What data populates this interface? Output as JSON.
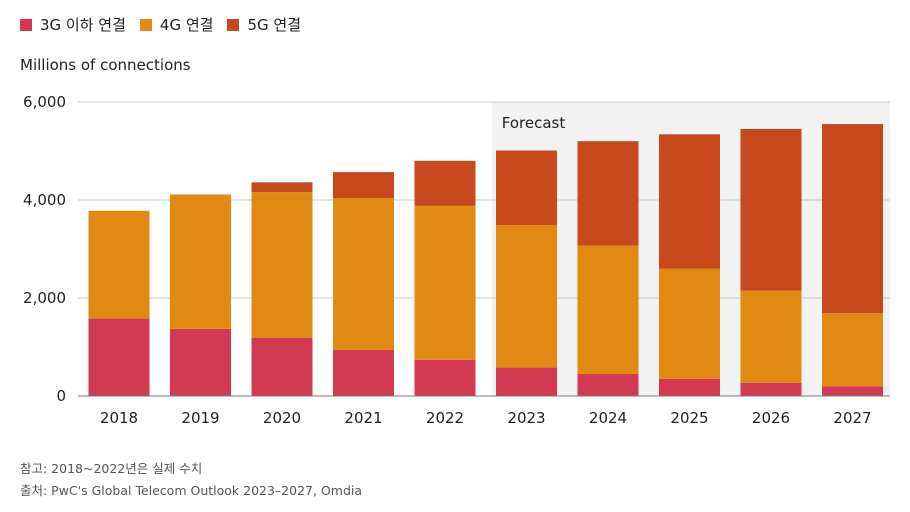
{
  "chart_data": {
    "type": "bar",
    "stacked": true,
    "title": "",
    "ylabel": "Millions of connections",
    "xlabel": "",
    "ylim": [
      0,
      6000
    ],
    "yticks": [
      0,
      2000,
      4000,
      6000
    ],
    "ytick_labels": [
      "0",
      "2,000",
      "4,000",
      "6,000"
    ],
    "categories": [
      "2018",
      "2019",
      "2020",
      "2021",
      "2022",
      "2023",
      "2024",
      "2025",
      "2026",
      "2027"
    ],
    "series": [
      {
        "name": "3G 이하 연결",
        "color": "#d13a52",
        "values": [
          1580,
          1370,
          1190,
          940,
          740,
          580,
          450,
          350,
          270,
          200
        ]
      },
      {
        "name": "4G 연결",
        "color": "#e08a14",
        "values": [
          2200,
          2730,
          2970,
          3100,
          3140,
          2910,
          2620,
          2250,
          1880,
          1490
        ]
      },
      {
        "name": "5G 연결",
        "color": "#c8481e",
        "values": [
          0,
          10,
          200,
          530,
          920,
          1520,
          2130,
          2740,
          3300,
          3860
        ]
      }
    ],
    "forecast": {
      "label": "Forecast",
      "start_category": "2023"
    },
    "legend_position": "top-left",
    "grid": true
  },
  "notes": {
    "line1": "참고: 2018~2022년은 실제 수치",
    "line2": "출처: PwC's Global Telecom Outlook 2023–2027, Omdia"
  },
  "colors": {
    "forecast_bg": "#f2f2f2",
    "gridline": "#c8c8c8",
    "baseline": "#7a7a7a"
  }
}
